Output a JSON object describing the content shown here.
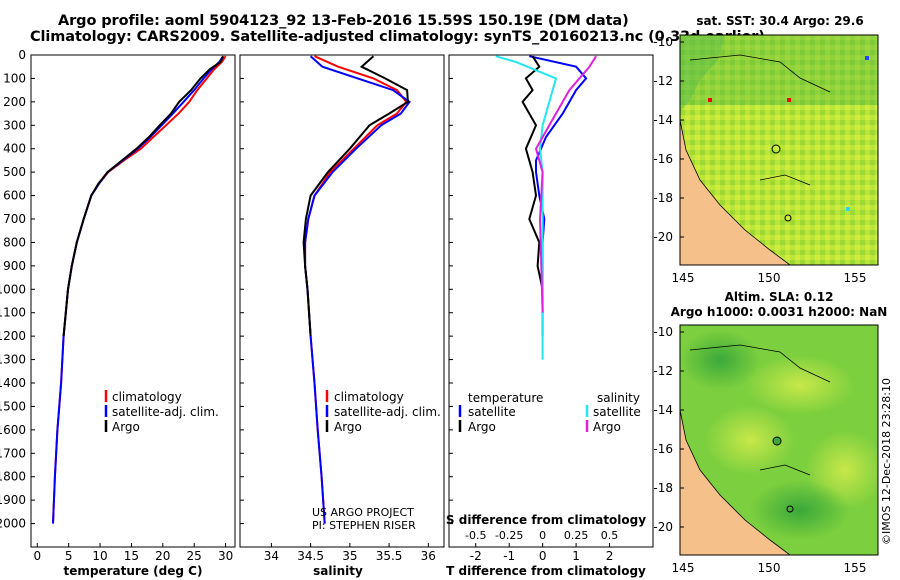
{
  "header": {
    "line1": "Argo profile: aoml 5904123_92 13-Feb-2016 15.59S 150.19E (DM data)",
    "line2": "Climatology: CARS2009. Satellite-adjusted climatology: synTS_20160213.nc (0.33d earlier)"
  },
  "maps": {
    "sst_title": "sat. SST: 30.4 Argo: 29.6",
    "sla_title1": "Altim. SLA: 0.12",
    "sla_title2": "Argo h1000: 0.0031 h2000: NaN",
    "lat_ticks": [
      "-10",
      "-12",
      "-14",
      "-16",
      "-18",
      "-20"
    ],
    "lon_ticks": [
      "145",
      "150",
      "155"
    ]
  },
  "credit": {
    "line1": "US ARGO PROJECT",
    "line2": "PI: STEPHEN RISER"
  },
  "stamp": "©IMOS 12-Dec-2018 23:28:10",
  "colors": {
    "climatology": "#ff0000",
    "satellite": "#0000ff",
    "argo": "#000000",
    "s_satellite": "#22e6f0",
    "s_argo": "#dd22dd"
  },
  "chart_data": [
    {
      "type": "line",
      "xlabel": "temperature (deg C)",
      "ylabel": "",
      "xlim": [
        -1,
        31.5
      ],
      "ylim": [
        2100,
        0
      ],
      "xticks": [
        "0",
        "5",
        "10",
        "15",
        "20",
        "25",
        "30"
      ],
      "yticks": [
        "0",
        "100",
        "200",
        "300",
        "400",
        "500",
        "600",
        "700",
        "800",
        "900",
        "1000",
        "1100",
        "1200",
        "1300",
        "1400",
        "1500",
        "1600",
        "1700",
        "1800",
        "1900",
        "2000"
      ],
      "legend": [
        "climatology",
        "satellite-adj. clim.",
        "Argo"
      ],
      "series": [
        {
          "name": "climatology",
          "x": [
            30,
            29.4,
            28.2,
            27,
            25.5,
            24.2,
            22.5,
            20.5,
            18.5,
            16.5,
            13.8,
            11.3,
            9.8,
            8.6,
            7.4,
            6.3,
            5.5,
            4.9,
            4.2,
            3.8,
            3.2,
            2.8,
            2.5
          ],
          "y": [
            5,
            30,
            60,
            100,
            150,
            200,
            250,
            300,
            350,
            400,
            450,
            500,
            550,
            600,
            700,
            800,
            900,
            1000,
            1200,
            1400,
            1600,
            1800,
            2000
          ]
        },
        {
          "name": "satellite-adj. clim.",
          "x": [
            29.6,
            29,
            27.8,
            26.5,
            25,
            23.3,
            21.6,
            19.8,
            18,
            16,
            13.6,
            11.2,
            9.8,
            8.6,
            7.4,
            6.3,
            5.5,
            4.9,
            4.2,
            3.8,
            3.2,
            2.8,
            2.5
          ],
          "y": [
            5,
            30,
            60,
            100,
            150,
            200,
            250,
            300,
            350,
            400,
            450,
            500,
            550,
            600,
            700,
            800,
            900,
            1000,
            1200,
            1400,
            1600,
            1800,
            2000
          ]
        },
        {
          "name": "Argo",
          "x": [
            29.6,
            29.2,
            27.5,
            26,
            24.5,
            22.6,
            21.3,
            19.5,
            17.8,
            15.8,
            13.5,
            11.2,
            9.7,
            8.6,
            7.4,
            6.3,
            5.5,
            4.9,
            4.2
          ],
          "y": [
            5,
            30,
            60,
            100,
            150,
            200,
            250,
            300,
            350,
            400,
            450,
            500,
            550,
            600,
            700,
            800,
            900,
            1000,
            1200
          ]
        }
      ]
    },
    {
      "type": "line",
      "xlabel": "salinity",
      "xlim": [
        33.6,
        36.2
      ],
      "ylim": [
        2100,
        0
      ],
      "xticks": [
        "34",
        "34.5",
        "35",
        "35.5",
        "36"
      ],
      "legend": [
        "climatology",
        "satellite-adj. clim.",
        "Argo"
      ],
      "series": [
        {
          "name": "climatology",
          "x": [
            34.55,
            34.85,
            35.3,
            35.6,
            35.72,
            35.6,
            35.35,
            35.05,
            34.75,
            34.55,
            34.47,
            34.43,
            34.43,
            34.46,
            34.5,
            34.55,
            34.59,
            34.64,
            34.68
          ],
          "y": [
            5,
            50,
            100,
            150,
            200,
            250,
            300,
            400,
            500,
            600,
            700,
            800,
            900,
            1000,
            1200,
            1400,
            1600,
            1800,
            2000
          ]
        },
        {
          "name": "satellite-adj. clim.",
          "x": [
            34.5,
            34.65,
            35.1,
            35.55,
            35.76,
            35.65,
            35.4,
            35.08,
            34.78,
            34.55,
            34.47,
            34.43,
            34.43,
            34.46,
            34.5,
            34.55,
            34.59,
            34.64,
            34.68
          ],
          "y": [
            5,
            50,
            100,
            150,
            200,
            250,
            300,
            400,
            500,
            600,
            700,
            800,
            900,
            1000,
            1200,
            1400,
            1600,
            1800,
            2000
          ]
        },
        {
          "name": "Argo",
          "x": [
            35.3,
            35.15,
            35.45,
            35.73,
            35.74,
            35.5,
            35.25,
            35.0,
            34.72,
            34.5,
            34.44,
            34.41,
            34.43,
            34.46,
            34.5
          ],
          "y": [
            5,
            50,
            100,
            150,
            200,
            250,
            300,
            400,
            500,
            600,
            700,
            800,
            900,
            1000,
            1200
          ]
        }
      ]
    },
    {
      "type": "line",
      "xlabel": "T difference from climatology",
      "xlabel_top": "S difference from climatology",
      "xlim": [
        -2.8,
        3.3
      ],
      "ylim": [
        2100,
        0
      ],
      "xticks": [
        "-2",
        "-1",
        "0",
        "1",
        "2"
      ],
      "xticks_top": [
        "-0.5",
        "-0.25",
        "0",
        "0.25",
        "0.5"
      ],
      "legend_headers": [
        "temperature",
        "salinity"
      ],
      "legend_temperature": [
        "satellite",
        "Argo"
      ],
      "legend_salinity": [
        "satellite",
        "Argo"
      ],
      "series": [
        {
          "name": "T satellite",
          "x": [
            -0.4,
            1.0,
            1.3,
            1.0,
            0.6,
            0.1,
            -0.2,
            -0.2,
            -0.1,
            0.05,
            0.0,
            0.0,
            0.0,
            0.0
          ],
          "y": [
            5,
            50,
            100,
            150,
            250,
            350,
            450,
            500,
            600,
            700,
            800,
            900,
            1000,
            1200
          ]
        },
        {
          "name": "T Argo",
          "x": [
            -0.3,
            -0.1,
            -0.5,
            -0.3,
            -0.6,
            -0.2,
            -0.5,
            -0.3,
            -0.2,
            -0.4,
            -0.1,
            -0.15,
            0.0
          ],
          "y": [
            5,
            50,
            100,
            150,
            200,
            300,
            400,
            500,
            600,
            700,
            800,
            900,
            1000
          ]
        },
        {
          "name": "S satellite",
          "x": [
            -0.35,
            -0.2,
            0.1,
            0.05,
            0.0,
            -0.02,
            0.0,
            0.0,
            0.0,
            0.0,
            0.0
          ],
          "y": [
            5,
            30,
            100,
            200,
            300,
            400,
            500,
            700,
            900,
            1100,
            1300
          ]
        },
        {
          "name": "S Argo",
          "x": [
            0.4,
            0.35,
            0.2,
            0.05,
            -0.05,
            0.0,
            -0.02,
            -0.01,
            0.0
          ],
          "y": [
            5,
            50,
            150,
            300,
            400,
            500,
            700,
            900,
            1100
          ]
        }
      ]
    }
  ]
}
